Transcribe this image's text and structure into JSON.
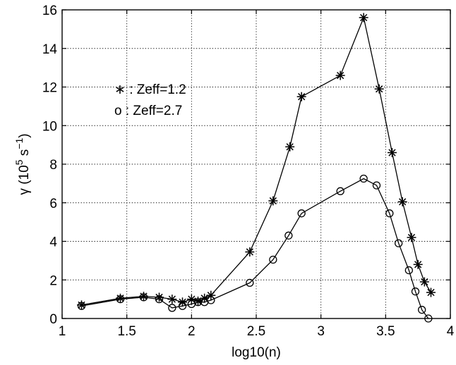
{
  "chart_data": {
    "type": "line",
    "xlabel": "log10(n)",
    "ylabel": "γ (10^5 s^-1)",
    "ylabel_parts": {
      "base": "γ (10",
      "exp1": "5",
      "mid": " s",
      "exp2": "−1",
      "end": ")"
    },
    "xlim": [
      1,
      4
    ],
    "ylim": [
      0,
      16
    ],
    "xticks": [
      1,
      1.5,
      2,
      2.5,
      3,
      3.5,
      4
    ],
    "xtick_labels": [
      "1",
      "1.5",
      "2",
      "2.5",
      "3",
      "3.5",
      "4"
    ],
    "yticks": [
      0,
      2,
      4,
      6,
      8,
      10,
      12,
      14,
      16
    ],
    "ytick_labels": [
      "0",
      "2",
      "4",
      "6",
      "8",
      "10",
      "12",
      "14",
      "16"
    ],
    "grid": true,
    "legend_position": "upper-left",
    "series": [
      {
        "name": "Zeff=1.2",
        "legend_label": "∗ : Zeff=1.2",
        "marker": "star",
        "x": [
          1.15,
          1.45,
          1.63,
          1.75,
          1.85,
          1.93,
          2.0,
          2.05,
          2.1,
          2.15,
          2.45,
          2.63,
          2.76,
          2.85,
          3.15,
          3.33,
          3.45,
          3.55,
          3.63,
          3.7,
          3.75,
          3.8,
          3.85
        ],
        "y": [
          0.7,
          1.05,
          1.15,
          1.1,
          1.0,
          0.85,
          1.0,
          0.9,
          1.05,
          1.2,
          3.45,
          6.1,
          8.9,
          11.5,
          12.6,
          15.6,
          11.9,
          8.6,
          6.05,
          4.2,
          2.8,
          1.9,
          1.35
        ]
      },
      {
        "name": "Zeff=2.7",
        "legend_label": "o : Zeff=2.7",
        "marker": "circle",
        "x": [
          1.15,
          1.45,
          1.63,
          1.75,
          1.85,
          1.93,
          2.0,
          2.05,
          2.1,
          2.15,
          2.45,
          2.63,
          2.75,
          2.85,
          3.15,
          3.33,
          3.43,
          3.53,
          3.6,
          3.68,
          3.73,
          3.78,
          3.83
        ],
        "y": [
          0.65,
          1.0,
          1.1,
          1.0,
          0.55,
          0.65,
          0.75,
          0.85,
          0.85,
          0.95,
          1.85,
          3.05,
          4.3,
          5.45,
          6.6,
          7.25,
          6.9,
          5.45,
          3.9,
          2.5,
          1.4,
          0.45,
          0.0
        ]
      }
    ]
  }
}
